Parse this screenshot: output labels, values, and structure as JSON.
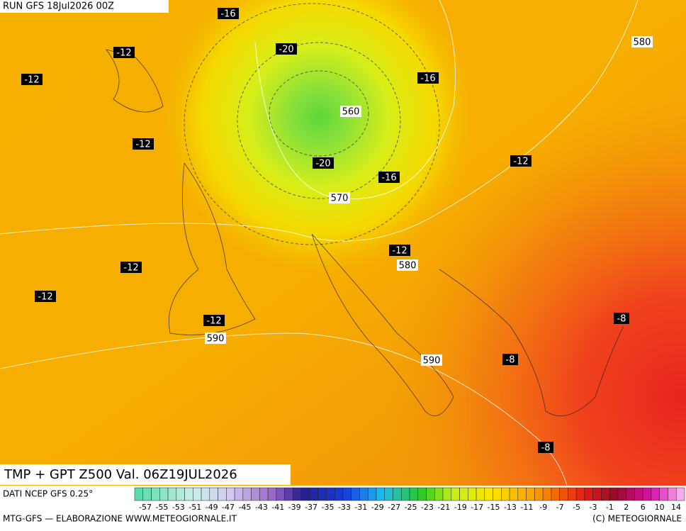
{
  "header": {
    "run": "RUN GFS 18Jul2026 00Z"
  },
  "map": {
    "labels": [
      {
        "text": "-16"
      },
      {
        "text": "-12"
      },
      {
        "text": "-20"
      },
      {
        "text": "580"
      },
      {
        "text": "-12"
      },
      {
        "text": "-16"
      },
      {
        "text": "560"
      },
      {
        "text": "-12"
      },
      {
        "text": "-20"
      },
      {
        "text": "-16"
      },
      {
        "text": "-12"
      },
      {
        "text": "570"
      },
      {
        "text": "-12"
      },
      {
        "text": "580"
      },
      {
        "text": "-12"
      },
      {
        "text": "-12"
      },
      {
        "text": "-12"
      },
      {
        "text": "590"
      },
      {
        "text": "-8"
      },
      {
        "text": "590"
      },
      {
        "text": "-8"
      },
      {
        "text": "-8"
      }
    ]
  },
  "footer": {
    "title": "TMP + GPT Z500 Val. 06Z19JUL2026",
    "source": "DATI NCEP GFS 0.25°",
    "credit": "MTG-GFS — ELABORAZIONE WWW.METEOGIORNALE.IT",
    "copyright": "(C) METEOGIORNALE"
  },
  "colorbar": {
    "labels": [
      "-57",
      "-55",
      "-53",
      "-51",
      "-49",
      "-47",
      "-45",
      "-43",
      "-41",
      "-39",
      "-37",
      "-35",
      "-33",
      "-31",
      "-29",
      "-27",
      "-25",
      "-23",
      "-21",
      "-19",
      "-17",
      "-15",
      "-13",
      "-11",
      "-9",
      "-7",
      "-5",
      "-3",
      "-1",
      "2",
      "6",
      "10",
      "14"
    ]
  }
}
